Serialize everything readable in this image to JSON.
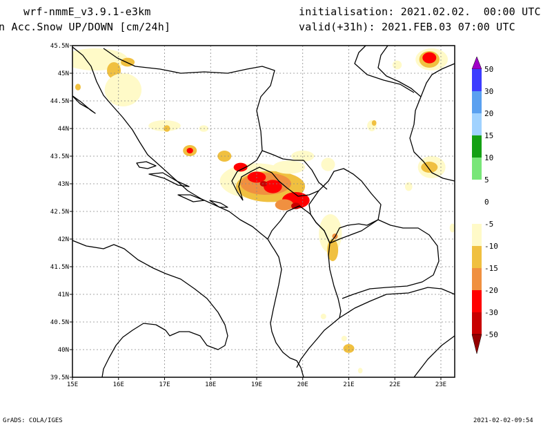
{
  "header": {
    "model": "wrf-nmmE_v3.9.1-e3km",
    "field": "n Acc.Snow UP/DOWN [cm/24h]",
    "init": "initialisation: 2021.02.02.  00:00 UTC",
    "valid": "valid(+31h): 2021.FEB.03 07:00 UTC"
  },
  "footer": {
    "left": "GrADS: COLA/IGES",
    "right": "2021-02-02-09:54"
  },
  "chart_data": {
    "type": "heatmap",
    "title": "n Acc.Snow UP/DOWN [cm/24h]",
    "xlim": [
      15,
      23.3
    ],
    "ylim": [
      39.5,
      45.5
    ],
    "x_ticks": [
      {
        "v": 15,
        "t": "15E"
      },
      {
        "v": 16,
        "t": "16E"
      },
      {
        "v": 17,
        "t": "17E"
      },
      {
        "v": 18,
        "t": "18E"
      },
      {
        "v": 19,
        "t": "19E"
      },
      {
        "v": 20,
        "t": "20E"
      },
      {
        "v": 21,
        "t": "21E"
      },
      {
        "v": 22,
        "t": "22E"
      },
      {
        "v": 23,
        "t": "23E"
      }
    ],
    "y_ticks": [
      {
        "v": 39.5,
        "t": "39.5N"
      },
      {
        "v": 40,
        "t": "40N"
      },
      {
        "v": 40.5,
        "t": "40.5N"
      },
      {
        "v": 41,
        "t": "41N"
      },
      {
        "v": 41.5,
        "t": "41.5N"
      },
      {
        "v": 42,
        "t": "42N"
      },
      {
        "v": 42.5,
        "t": "42.5N"
      },
      {
        "v": 43,
        "t": "43N"
      },
      {
        "v": 43.5,
        "t": "43.5N"
      },
      {
        "v": 44,
        "t": "44N"
      },
      {
        "v": 44.5,
        "t": "44.5N"
      },
      {
        "v": 45,
        "t": "45N"
      },
      {
        "v": 45.5,
        "t": "45.5N"
      }
    ],
    "grid": true,
    "legend": {
      "position": "right",
      "bins": [
        {
          "color": "#a000c8"
        },
        {
          "color": "#3c3cff",
          "label": "50"
        },
        {
          "color": "#5aa0f0",
          "label": "30"
        },
        {
          "color": "#a0d2ff",
          "label": "20"
        },
        {
          "color": "#14a014",
          "label": "15"
        },
        {
          "color": "#78e678",
          "label": "10"
        },
        {
          "color": "#ffffff",
          "label": "5"
        },
        {
          "color": "#ffffff",
          "label": "0"
        },
        {
          "color": "#fffac8",
          "label": "-5"
        },
        {
          "color": "#f0c040",
          "label": "-10"
        },
        {
          "color": "#f09040",
          "label": "-15"
        },
        {
          "color": "#ff0000",
          "label": "-20"
        },
        {
          "color": "#c80000",
          "label": "-30"
        },
        {
          "color": "#960000",
          "label": "-50"
        }
      ]
    },
    "snow_areas": [
      {
        "lon": 15.5,
        "lat": 45.25,
        "rx": 0.7,
        "ry": 0.2,
        "color": "#fffac8"
      },
      {
        "lon": 15.9,
        "lat": 45.05,
        "rx": 0.15,
        "ry": 0.15,
        "color": "#f0c040"
      },
      {
        "lon": 16.2,
        "lat": 45.2,
        "rx": 0.15,
        "ry": 0.08,
        "color": "#f0c040"
      },
      {
        "lon": 15.12,
        "lat": 44.75,
        "rx": 0.06,
        "ry": 0.06,
        "color": "#f0c040"
      },
      {
        "lon": 16.1,
        "lat": 44.7,
        "rx": 0.4,
        "ry": 0.3,
        "color": "#fffac8"
      },
      {
        "lon": 17.0,
        "lat": 44.05,
        "rx": 0.35,
        "ry": 0.1,
        "color": "#fffac8"
      },
      {
        "lon": 17.05,
        "lat": 44.0,
        "rx": 0.07,
        "ry": 0.06,
        "color": "#f0c040"
      },
      {
        "lon": 17.55,
        "lat": 43.6,
        "rx": 0.15,
        "ry": 0.1,
        "color": "#f0c040"
      },
      {
        "lon": 17.55,
        "lat": 43.6,
        "rx": 0.07,
        "ry": 0.05,
        "color": "#ff0000"
      },
      {
        "lon": 17.85,
        "lat": 44.0,
        "rx": 0.1,
        "ry": 0.06,
        "color": "#fffac8"
      },
      {
        "lon": 18.3,
        "lat": 43.5,
        "rx": 0.15,
        "ry": 0.1,
        "color": "#f0c040"
      },
      {
        "lon": 19.0,
        "lat": 43.05,
        "rx": 0.8,
        "ry": 0.32,
        "color": "#fffac8"
      },
      {
        "lon": 19.3,
        "lat": 42.95,
        "rx": 0.75,
        "ry": 0.28,
        "color": "#f0c040"
      },
      {
        "lon": 19.2,
        "lat": 43.0,
        "rx": 0.55,
        "ry": 0.2,
        "color": "#f09040"
      },
      {
        "lon": 18.65,
        "lat": 43.3,
        "rx": 0.15,
        "ry": 0.08,
        "color": "#ff0000"
      },
      {
        "lon": 19.0,
        "lat": 43.12,
        "rx": 0.2,
        "ry": 0.1,
        "color": "#ff0000"
      },
      {
        "lon": 19.35,
        "lat": 42.95,
        "rx": 0.2,
        "ry": 0.12,
        "color": "#ff0000"
      },
      {
        "lon": 19.85,
        "lat": 42.7,
        "rx": 0.3,
        "ry": 0.15,
        "color": "#ff0000"
      },
      {
        "lon": 19.6,
        "lat": 42.62,
        "rx": 0.2,
        "ry": 0.1,
        "color": "#f09040"
      },
      {
        "lon": 19.85,
        "lat": 42.6,
        "rx": 0.1,
        "ry": 0.06,
        "color": "#c80000"
      },
      {
        "lon": 19.15,
        "lat": 43.0,
        "rx": 0.08,
        "ry": 0.05,
        "color": "#c80000"
      },
      {
        "lon": 19.7,
        "lat": 43.3,
        "rx": 0.35,
        "ry": 0.12,
        "color": "#fffac8"
      },
      {
        "lon": 20.0,
        "lat": 43.5,
        "rx": 0.25,
        "ry": 0.1,
        "color": "#fffac8"
      },
      {
        "lon": 20.55,
        "lat": 43.35,
        "rx": 0.15,
        "ry": 0.12,
        "color": "#fffac8"
      },
      {
        "lon": 20.6,
        "lat": 42.1,
        "rx": 0.25,
        "ry": 0.35,
        "color": "#fffac8"
      },
      {
        "lon": 20.65,
        "lat": 41.8,
        "rx": 0.12,
        "ry": 0.2,
        "color": "#f0c040"
      },
      {
        "lon": 20.7,
        "lat": 42.05,
        "rx": 0.06,
        "ry": 0.05,
        "color": "#f09040"
      },
      {
        "lon": 21.5,
        "lat": 44.05,
        "rx": 0.1,
        "ry": 0.1,
        "color": "#fffac8"
      },
      {
        "lon": 21.55,
        "lat": 44.1,
        "rx": 0.05,
        "ry": 0.05,
        "color": "#f0c040"
      },
      {
        "lon": 22.8,
        "lat": 45.25,
        "rx": 0.35,
        "ry": 0.2,
        "color": "#fffac8"
      },
      {
        "lon": 22.75,
        "lat": 45.25,
        "rx": 0.22,
        "ry": 0.15,
        "color": "#f0c040"
      },
      {
        "lon": 22.75,
        "lat": 45.28,
        "rx": 0.15,
        "ry": 0.1,
        "color": "#ff0000"
      },
      {
        "lon": 22.05,
        "lat": 45.15,
        "rx": 0.1,
        "ry": 0.08,
        "color": "#fffac8"
      },
      {
        "lon": 22.8,
        "lat": 43.3,
        "rx": 0.3,
        "ry": 0.2,
        "color": "#fffac8"
      },
      {
        "lon": 22.75,
        "lat": 43.3,
        "rx": 0.18,
        "ry": 0.1,
        "color": "#f0c040"
      },
      {
        "lon": 22.3,
        "lat": 42.95,
        "rx": 0.08,
        "ry": 0.08,
        "color": "#fffac8"
      },
      {
        "lon": 23.25,
        "lat": 42.2,
        "rx": 0.06,
        "ry": 0.08,
        "color": "#fffac8"
      },
      {
        "lon": 20.45,
        "lat": 40.6,
        "rx": 0.06,
        "ry": 0.05,
        "color": "#fffac8"
      },
      {
        "lon": 21.0,
        "lat": 40.02,
        "rx": 0.12,
        "ry": 0.08,
        "color": "#f0c040"
      },
      {
        "lon": 21.25,
        "lat": 39.62,
        "rx": 0.05,
        "ry": 0.05,
        "color": "#fffac8"
      },
      {
        "lon": 20.9,
        "lat": 40.2,
        "rx": 0.06,
        "ry": 0.05,
        "color": "#fffac8"
      }
    ]
  }
}
